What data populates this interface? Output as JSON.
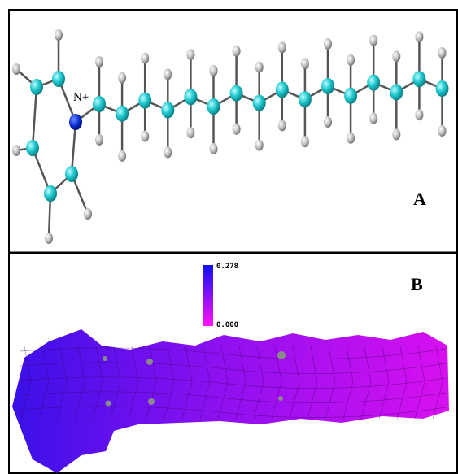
{
  "panels": [
    {
      "label": "A",
      "atom_label": "N+"
    },
    {
      "label": "B",
      "colorbar": {
        "max_label": "0.278",
        "min_label": "0.000"
      }
    }
  ]
}
